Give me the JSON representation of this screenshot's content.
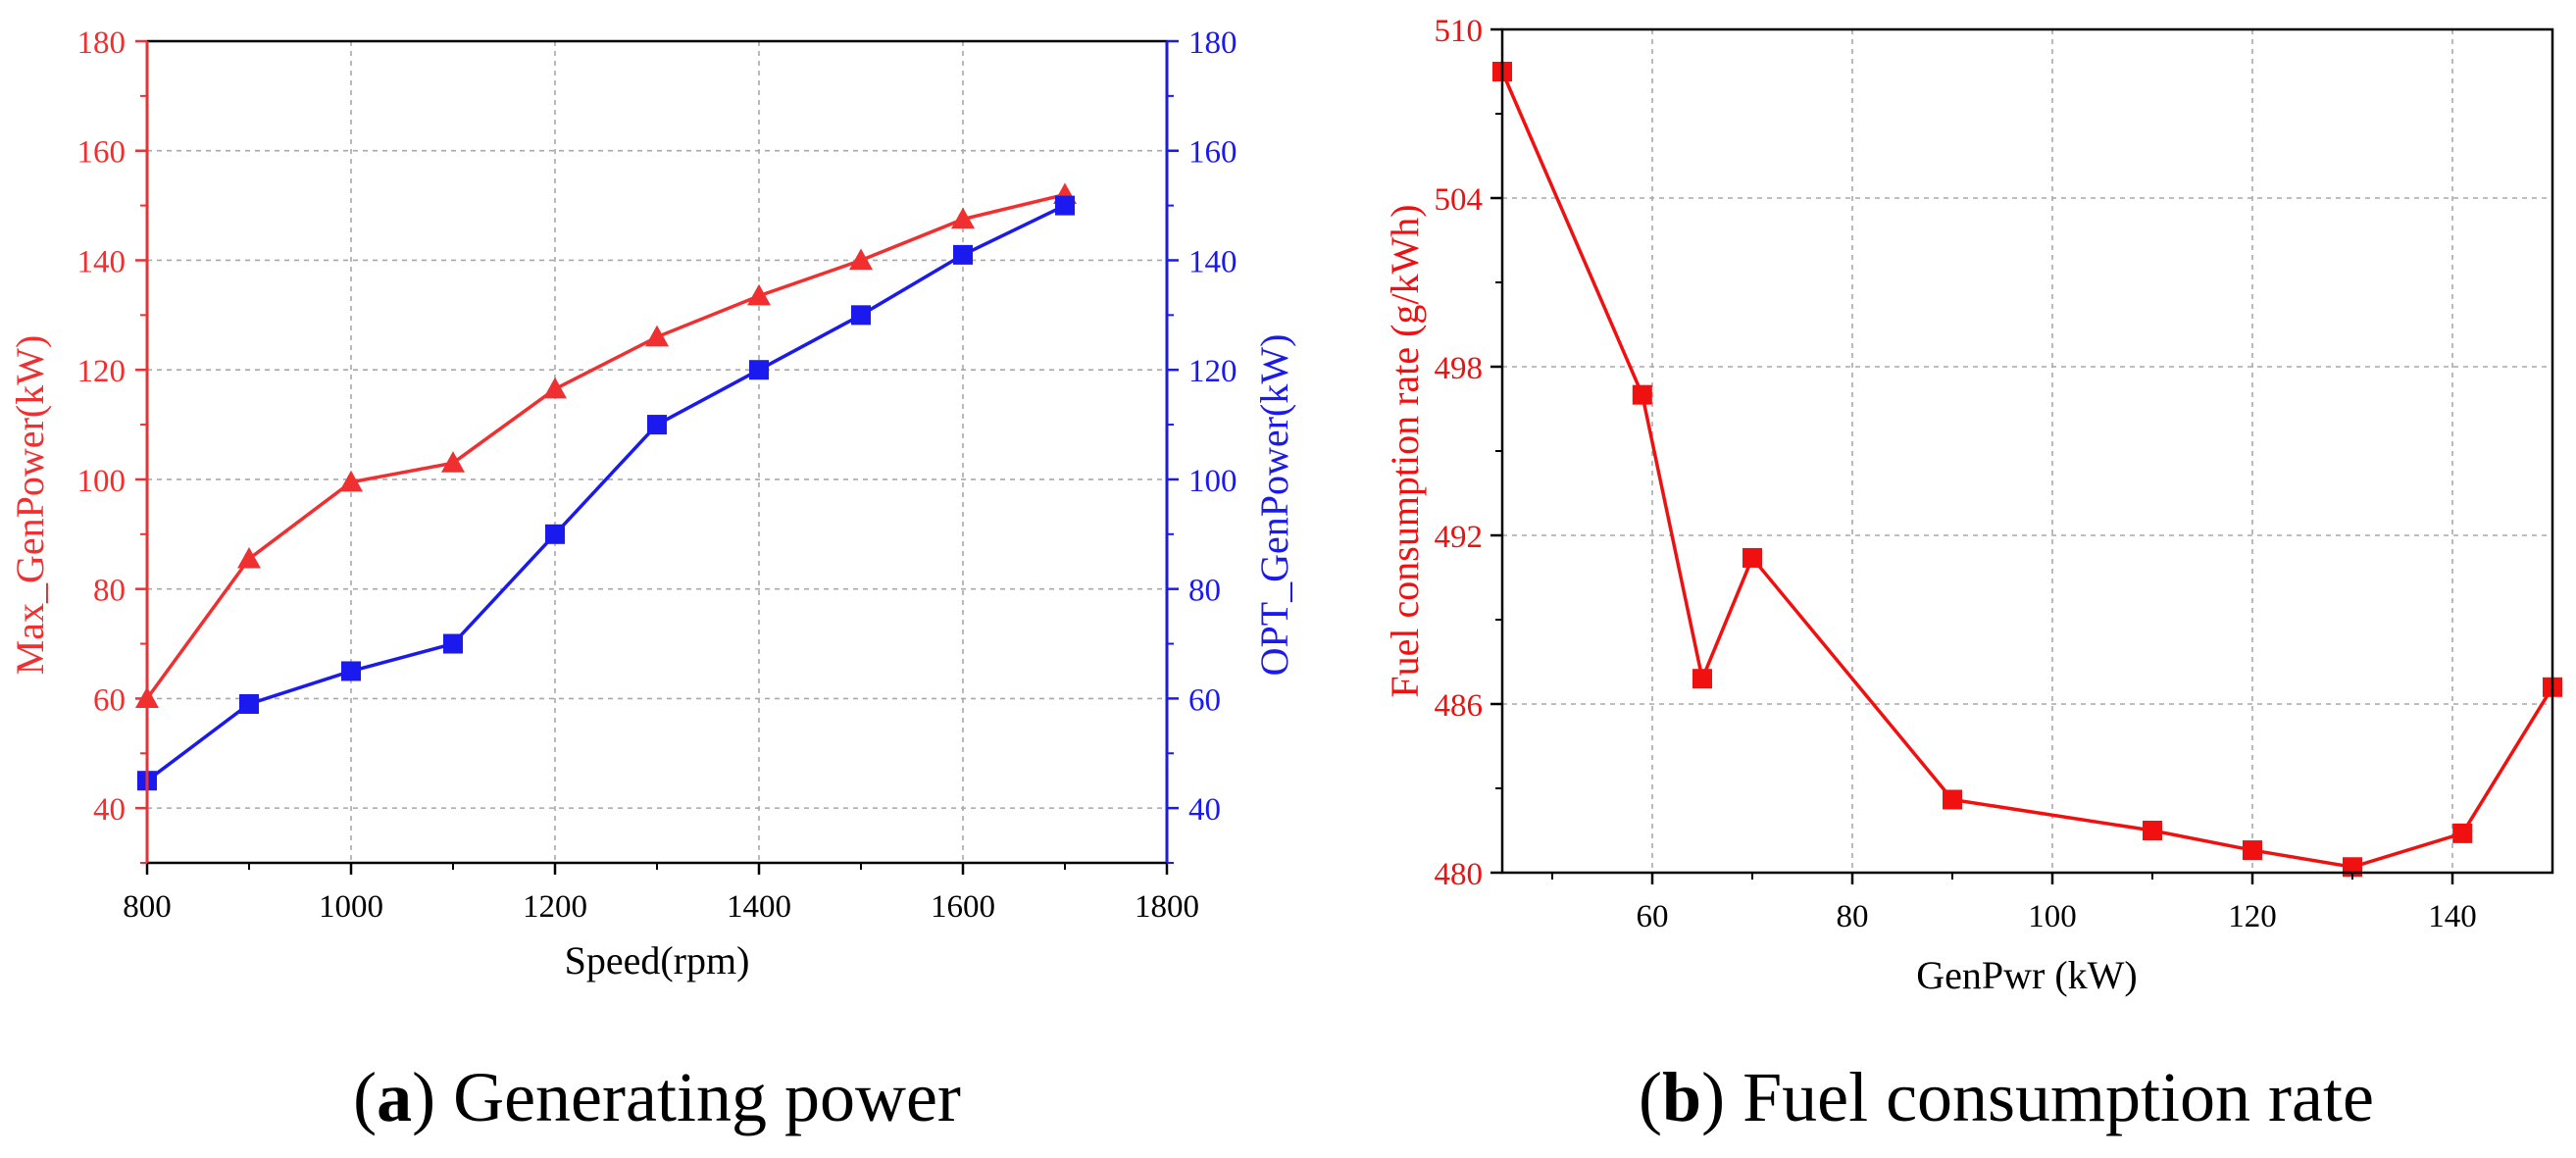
{
  "chart_data": [
    {
      "id": "a",
      "type": "line",
      "caption": {
        "label": "a",
        "text": "Generating power"
      },
      "xlabel": "Speed(rpm)",
      "ylabel_left": "Max_GenPower(kW)",
      "ylabel_right": "OPT_GenPower(kW)",
      "xlim": [
        800,
        1800
      ],
      "ylim_left": [
        30,
        180
      ],
      "ylim_right": [
        30,
        180
      ],
      "xticks": [
        800,
        1000,
        1200,
        1400,
        1600,
        1800
      ],
      "yticks_left": [
        40,
        60,
        80,
        100,
        120,
        140,
        160,
        180
      ],
      "yticks_right": [
        40,
        60,
        80,
        100,
        120,
        140,
        160,
        180
      ],
      "grid": true,
      "x": [
        800,
        900,
        1000,
        1100,
        1200,
        1300,
        1400,
        1500,
        1600,
        1700
      ],
      "series": [
        {
          "name": "Max_GenPower",
          "axis": "left",
          "color": "#f03030",
          "marker": "triangle",
          "values": [
            60,
            85.5,
            99.5,
            103,
            116.5,
            126,
            133.5,
            140,
            147.5,
            152
          ]
        },
        {
          "name": "OPT_GenPower",
          "axis": "right",
          "color": "#1a1aee",
          "marker": "square",
          "values": [
            45,
            59,
            65,
            70,
            90,
            110,
            120,
            130,
            141,
            150
          ]
        }
      ]
    },
    {
      "id": "b",
      "type": "line",
      "caption": {
        "label": "b",
        "text": "Fuel consumption rate"
      },
      "xlabel": "GenPwr (kW)",
      "ylabel": "Fuel consumption rate (g/kWh)",
      "xlim": [
        45,
        150
      ],
      "ylim": [
        480,
        510
      ],
      "xticks": [
        60,
        80,
        100,
        120,
        140
      ],
      "yticks": [
        480,
        486,
        492,
        498,
        504,
        510
      ],
      "grid": true,
      "series": [
        {
          "name": "Fuel consumption rate",
          "color": "#f01010",
          "marker": "square",
          "x": [
            45,
            59,
            65,
            70,
            90,
            110,
            120,
            130,
            141,
            150
          ],
          "values": [
            508.5,
            497,
            486.9,
            491.2,
            482.6,
            481.5,
            480.8,
            480.2,
            481.4,
            486.6
          ]
        }
      ]
    }
  ]
}
